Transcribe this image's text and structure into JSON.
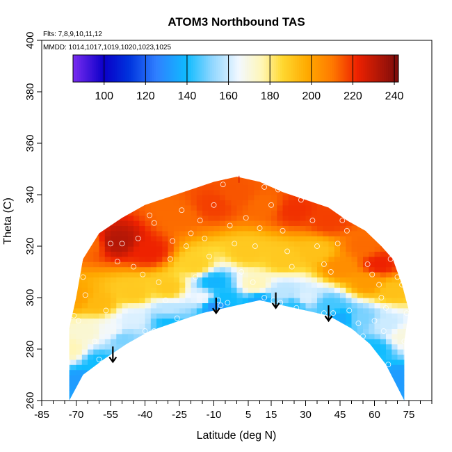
{
  "chart_data": {
    "type": "heatmap",
    "title": "ATOM3 Northbound TAS",
    "flights_note": "Flts: 7,8,9,10,11,12",
    "dates_note": "MMDD: 1014,1017,1019,1020,1023,1025",
    "xlabel": "Latitude (deg N)",
    "ylabel": "Theta (C)",
    "xlim": [
      -85,
      85
    ],
    "ylim": [
      260,
      400
    ],
    "x_ticks": [
      -85,
      -70,
      -55,
      -40,
      -25,
      -10,
      5,
      15,
      30,
      45,
      60,
      75
    ],
    "y_ticks": [
      260,
      280,
      300,
      320,
      340,
      360,
      380,
      400
    ],
    "colorbar": {
      "min": 85,
      "max": 242,
      "ticks": [
        100,
        120,
        140,
        160,
        180,
        200,
        220,
        240
      ],
      "stops": [
        {
          "v": 85,
          "c": "#7a2cf0"
        },
        {
          "v": 100,
          "c": "#0a00c8"
        },
        {
          "v": 112,
          "c": "#0033dd"
        },
        {
          "v": 125,
          "c": "#2f7fff"
        },
        {
          "v": 140,
          "c": "#0fbcff"
        },
        {
          "v": 152,
          "c": "#8fd6ff"
        },
        {
          "v": 165,
          "c": "#f2f8ff"
        },
        {
          "v": 176,
          "c": "#fff6b8"
        },
        {
          "v": 186,
          "c": "#ffd830"
        },
        {
          "v": 198,
          "c": "#ffaa00"
        },
        {
          "v": 210,
          "c": "#ff7a00"
        },
        {
          "v": 222,
          "c": "#ee2200"
        },
        {
          "v": 242,
          "c": "#7a0c0c"
        }
      ]
    },
    "coverage": {
      "bottom": [
        [
          -73,
          260
        ],
        [
          -67,
          270
        ],
        [
          -58,
          276
        ],
        [
          -48,
          282
        ],
        [
          -38,
          287
        ],
        [
          -25,
          291
        ],
        [
          -15,
          294
        ],
        [
          -5,
          296
        ],
        [
          10,
          299
        ],
        [
          20,
          297
        ],
        [
          30,
          295
        ],
        [
          40,
          293
        ],
        [
          50,
          288
        ],
        [
          58,
          282
        ],
        [
          65,
          274
        ],
        [
          73,
          260
        ]
      ],
      "top": [
        [
          -73,
          288
        ],
        [
          -70,
          300
        ],
        [
          -67,
          315
        ],
        [
          -60,
          325
        ],
        [
          -50,
          331
        ],
        [
          -40,
          336
        ],
        [
          -30,
          339
        ],
        [
          -20,
          342
        ],
        [
          -10,
          345
        ],
        [
          0,
          347
        ],
        [
          10,
          345
        ],
        [
          20,
          341
        ],
        [
          30,
          338
        ],
        [
          40,
          335
        ],
        [
          48,
          330
        ],
        [
          56,
          326
        ],
        [
          63,
          320
        ],
        [
          68,
          315
        ],
        [
          72,
          305
        ],
        [
          75,
          295
        ],
        [
          73,
          283
        ]
      ]
    },
    "field_anchors": [
      {
        "x": -65,
        "y": 321,
        "v": 212
      },
      {
        "x": -52,
        "y": 322,
        "v": 232
      },
      {
        "x": -38,
        "y": 318,
        "v": 222
      },
      {
        "x": -25,
        "y": 332,
        "v": 212
      },
      {
        "x": -10,
        "y": 336,
        "v": 218
      },
      {
        "x": 0,
        "y": 340,
        "v": 215
      },
      {
        "x": 12,
        "y": 336,
        "v": 212
      },
      {
        "x": 25,
        "y": 334,
        "v": 220
      },
      {
        "x": 40,
        "y": 330,
        "v": 218
      },
      {
        "x": 55,
        "y": 320,
        "v": 212
      },
      {
        "x": 62,
        "y": 313,
        "v": 222
      },
      {
        "x": -70,
        "y": 300,
        "v": 200
      },
      {
        "x": -60,
        "y": 298,
        "v": 194
      },
      {
        "x": -45,
        "y": 302,
        "v": 190
      },
      {
        "x": -30,
        "y": 304,
        "v": 190
      },
      {
        "x": -18,
        "y": 313,
        "v": 188
      },
      {
        "x": 5,
        "y": 318,
        "v": 190
      },
      {
        "x": 20,
        "y": 315,
        "v": 190
      },
      {
        "x": 35,
        "y": 318,
        "v": 192
      },
      {
        "x": 45,
        "y": 312,
        "v": 205
      },
      {
        "x": 57,
        "y": 306,
        "v": 202
      },
      {
        "x": 68,
        "y": 303,
        "v": 192
      },
      {
        "x": -65,
        "y": 287,
        "v": 172
      },
      {
        "x": -55,
        "y": 287,
        "v": 166
      },
      {
        "x": -45,
        "y": 292,
        "v": 162
      },
      {
        "x": -30,
        "y": 295,
        "v": 158
      },
      {
        "x": -15,
        "y": 300,
        "v": 165
      },
      {
        "x": -10,
        "y": 306,
        "v": 138
      },
      {
        "x": -5,
        "y": 300,
        "v": 140
      },
      {
        "x": 8,
        "y": 305,
        "v": 176
      },
      {
        "x": 20,
        "y": 302,
        "v": 158
      },
      {
        "x": 30,
        "y": 300,
        "v": 162
      },
      {
        "x": 40,
        "y": 297,
        "v": 145
      },
      {
        "x": 55,
        "y": 292,
        "v": 150
      },
      {
        "x": 65,
        "y": 290,
        "v": 160
      },
      {
        "x": -68,
        "y": 268,
        "v": 132
      },
      {
        "x": -60,
        "y": 275,
        "v": 140
      },
      {
        "x": -50,
        "y": 284,
        "v": 150
      },
      {
        "x": -30,
        "y": 291,
        "v": 140
      },
      {
        "x": -10,
        "y": 297,
        "v": 130
      },
      {
        "x": 10,
        "y": 299,
        "v": 135
      },
      {
        "x": 25,
        "y": 297,
        "v": 142
      },
      {
        "x": 45,
        "y": 292,
        "v": 136
      },
      {
        "x": 60,
        "y": 280,
        "v": 140
      },
      {
        "x": 70,
        "y": 268,
        "v": 132
      },
      {
        "x": -73,
        "y": 280,
        "v": 176
      },
      {
        "x": 73,
        "y": 285,
        "v": 170
      }
    ],
    "obs_points": [
      [
        -71,
        293
      ],
      [
        -66,
        301
      ],
      [
        -67,
        308
      ],
      [
        -69,
        291
      ],
      [
        -62,
        283
      ],
      [
        -58,
        270
      ],
      [
        -60,
        276
      ],
      [
        -65,
        325
      ],
      [
        -55,
        321
      ],
      [
        -50,
        321
      ],
      [
        -52,
        314
      ],
      [
        -45,
        312
      ],
      [
        -43,
        323
      ],
      [
        -41,
        309
      ],
      [
        -38,
        332
      ],
      [
        -36,
        329
      ],
      [
        -34,
        306
      ],
      [
        -31,
        299
      ],
      [
        -40,
        287
      ],
      [
        -36,
        287
      ],
      [
        -28,
        322
      ],
      [
        -24,
        334
      ],
      [
        -22,
        320
      ],
      [
        -18,
        308
      ],
      [
        -20,
        325
      ],
      [
        -14,
        323
      ],
      [
        -12,
        316
      ],
      [
        -10,
        336
      ],
      [
        -6,
        344
      ],
      [
        -3,
        328
      ],
      [
        -1,
        321
      ],
      [
        -7,
        297
      ],
      [
        4,
        331
      ],
      [
        8,
        320
      ],
      [
        10,
        327
      ],
      [
        12,
        343
      ],
      [
        15,
        336
      ],
      [
        18,
        342
      ],
      [
        20,
        326
      ],
      [
        22,
        318
      ],
      [
        24,
        312
      ],
      [
        16,
        299
      ],
      [
        19,
        298
      ],
      [
        12,
        300
      ],
      [
        28,
        338
      ],
      [
        31,
        342
      ],
      [
        33,
        330
      ],
      [
        35,
        320
      ],
      [
        38,
        313
      ],
      [
        41,
        310
      ],
      [
        44,
        321
      ],
      [
        46,
        330
      ],
      [
        48,
        326
      ],
      [
        49,
        295
      ],
      [
        51,
        286
      ],
      [
        53,
        290
      ],
      [
        55,
        285
      ],
      [
        57,
        313
      ],
      [
        59,
        309
      ],
      [
        62,
        305
      ],
      [
        63,
        300
      ],
      [
        65,
        296
      ],
      [
        67,
        315
      ],
      [
        69,
        318
      ],
      [
        70,
        308
      ],
      [
        66,
        274
      ],
      [
        64,
        287
      ],
      [
        60,
        291
      ],
      [
        56,
        280
      ],
      [
        72,
        305
      ],
      [
        74,
        294
      ],
      [
        73,
        283
      ],
      [
        -73,
        294
      ],
      [
        -72,
        300
      ],
      [
        -57,
        295
      ],
      [
        26,
        296
      ],
      [
        38,
        294
      ],
      [
        42,
        294
      ],
      [
        2,
        310
      ],
      [
        -26,
        292
      ],
      [
        -8,
        299
      ],
      [
        -4,
        298
      ],
      [
        7,
        306
      ],
      [
        -29,
        315
      ],
      [
        -16,
        330
      ]
    ],
    "arrows": [
      {
        "x": -54,
        "y_top": 281,
        "y_bottom": 275
      },
      {
        "x": -9,
        "y_top": 300,
        "y_bottom": 294
      },
      {
        "x": 17,
        "y_top": 302,
        "y_bottom": 296
      },
      {
        "x": 40,
        "y_top": 297,
        "y_bottom": 291
      }
    ],
    "top_marker": {
      "x": 1,
      "y": 346,
      "label": "|"
    }
  }
}
